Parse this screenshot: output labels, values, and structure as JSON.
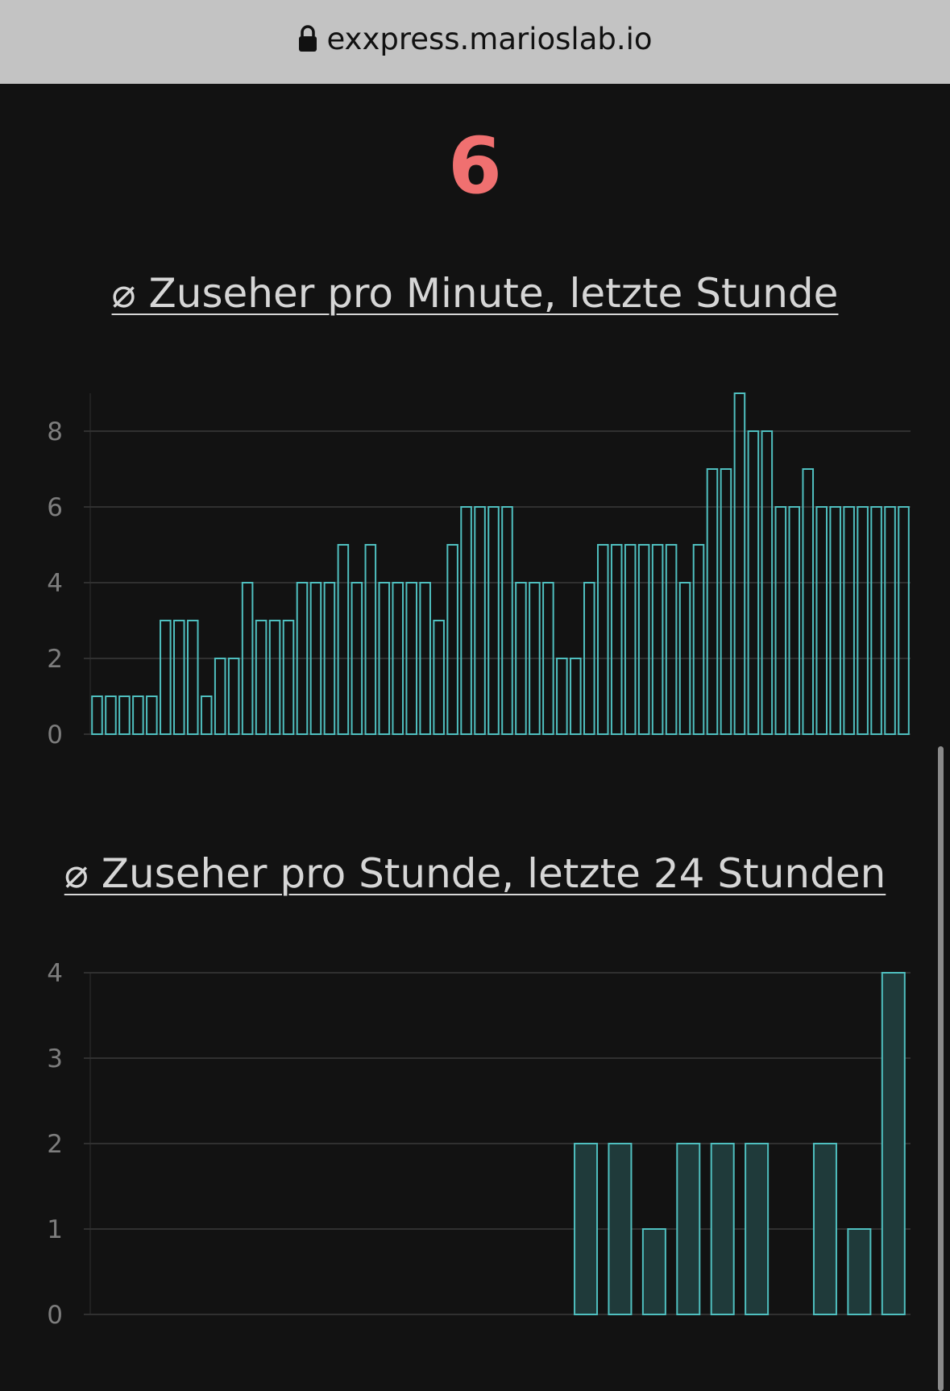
{
  "browser": {
    "url": "exxpress.marioslab.io",
    "lock_icon": "lock-icon"
  },
  "main": {
    "current_viewers": "6"
  },
  "colors": {
    "bar_stroke": "#4fbfbf",
    "bar_fill_hourly": "#1f3a3a",
    "big_number": "#f07070"
  },
  "chart_data": [
    {
      "type": "bar",
      "title": "⌀ Zuseher pro Minute, letzte Stunde",
      "ylim": [
        0,
        9
      ],
      "yticks": [
        0,
        2,
        4,
        6,
        8
      ],
      "grid": true,
      "values": [
        1,
        1,
        1,
        1,
        1,
        3,
        3,
        3,
        1,
        2,
        2,
        4,
        3,
        3,
        3,
        4,
        4,
        4,
        5,
        4,
        5,
        4,
        4,
        4,
        4,
        3,
        5,
        6,
        6,
        6,
        6,
        4,
        4,
        4,
        2,
        2,
        4,
        5,
        5,
        5,
        5,
        5,
        5,
        4,
        5,
        7,
        7,
        9,
        8,
        8,
        6,
        6,
        7,
        6,
        6,
        6,
        6,
        6,
        6,
        6
      ]
    },
    {
      "type": "bar",
      "title": "⌀ Zuseher pro Stunde, letzte 24 Stunden",
      "ylim": [
        0,
        4
      ],
      "yticks": [
        0,
        1,
        2,
        3,
        4
      ],
      "grid": true,
      "values": [
        0,
        0,
        0,
        0,
        0,
        0,
        0,
        0,
        0,
        0,
        0,
        0,
        0,
        0,
        2,
        2,
        1,
        2,
        2,
        2,
        0,
        2,
        1,
        4
      ]
    }
  ]
}
